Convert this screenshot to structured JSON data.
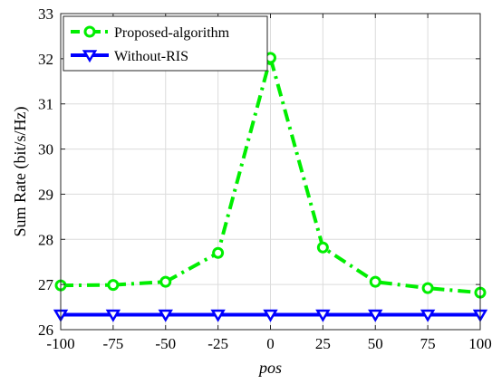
{
  "chart_data": {
    "type": "line",
    "x": [
      -100,
      -75,
      -50,
      -25,
      0,
      25,
      50,
      75,
      100
    ],
    "xlabel": "pos",
    "ylabel": "Sum Rate (bit/s/Hz)",
    "xlim": [
      -100,
      100
    ],
    "ylim": [
      26,
      33
    ],
    "xticks": [
      "-100",
      "-75",
      "-50",
      "-25",
      "0",
      "25",
      "50",
      "75",
      "100"
    ],
    "yticks": [
      "26",
      "27",
      "28",
      "29",
      "30",
      "31",
      "32",
      "33"
    ],
    "grid": true,
    "legend_position": "top-left",
    "series": [
      {
        "name": "Proposed-algorithm",
        "values": [
          26.98,
          26.99,
          27.06,
          27.7,
          32.02,
          27.82,
          27.06,
          26.92,
          26.82
        ],
        "color": "#00ee00",
        "line_style": "dash-dot",
        "marker": "circle"
      },
      {
        "name": "Without-RIS",
        "values": [
          26.33,
          26.33,
          26.33,
          26.33,
          26.33,
          26.33,
          26.33,
          26.33,
          26.33
        ],
        "color": "#0000ff",
        "line_style": "solid",
        "marker": "triangle-down"
      }
    ]
  }
}
